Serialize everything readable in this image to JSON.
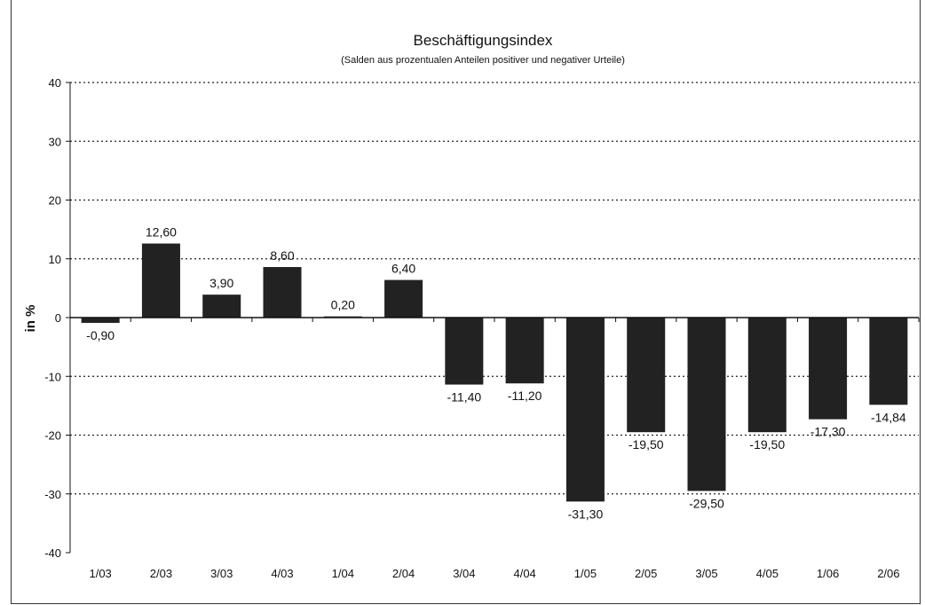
{
  "chart_data": {
    "type": "bar",
    "title": "Beschäftigungsindex",
    "subtitle": "(Salden aus prozentualen Anteilen positiver und negativer Urteile)",
    "ylabel": "in %",
    "xlabel": "",
    "ylim": [
      -40,
      40
    ],
    "yticks": [
      40,
      30,
      20,
      10,
      0,
      -10,
      -20,
      -30,
      -40
    ],
    "grid": true,
    "categories": [
      "1/03",
      "2/03",
      "3/03",
      "4/03",
      "1/04",
      "2/04",
      "3/04",
      "4/04",
      "1/05",
      "2/05",
      "3/05",
      "4/05",
      "1/06",
      "2/06"
    ],
    "values": [
      -0.9,
      12.6,
      3.9,
      8.6,
      0.2,
      6.4,
      -11.4,
      -11.2,
      -31.3,
      -19.5,
      -29.5,
      -19.5,
      -17.3,
      -14.84
    ],
    "data_labels": [
      "-0,90",
      "12,60",
      "3,90",
      "8,60",
      "0,20",
      "6,40",
      "-11,40",
      "-11,20",
      "-31,30",
      "-19,50",
      "-29,50",
      "-19,50",
      "-17,30",
      "-14,84"
    ],
    "bar_color": "#222222"
  }
}
